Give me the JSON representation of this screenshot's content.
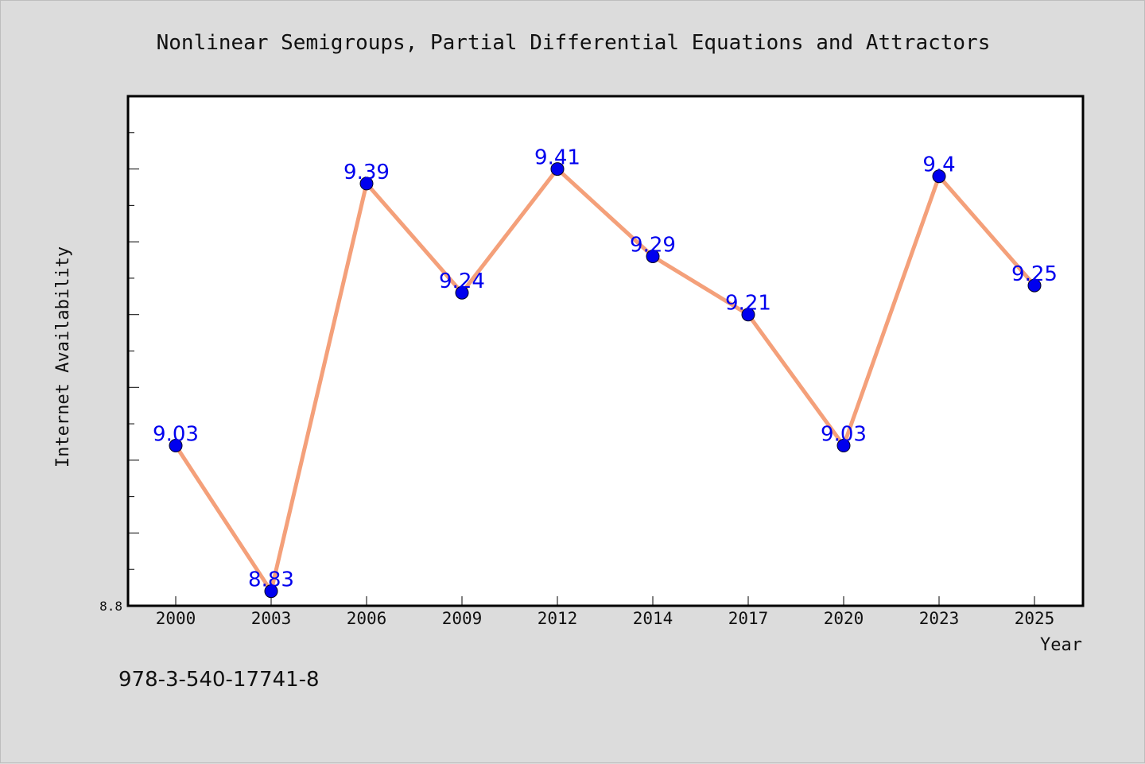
{
  "chart_data": {
    "type": "line",
    "title": "Nonlinear Semigroups, Partial Differential Equations and Attractors",
    "xlabel": "Year",
    "ylabel": "Internet Availability",
    "categories": [
      "2000",
      "2003",
      "2006",
      "2009",
      "2012",
      "2014",
      "2017",
      "2020",
      "2023",
      "2025"
    ],
    "series": [
      {
        "values": [
          9.03,
          8.83,
          9.39,
          9.24,
          9.41,
          9.29,
          9.21,
          9.03,
          9.4,
          9.25
        ],
        "labels": [
          "9.03",
          "8.83",
          "9.39",
          "9.24",
          "9.41",
          "9.29",
          "9.21",
          "9.03",
          "9.4",
          "9.25"
        ]
      }
    ],
    "ylim": [
      8.81,
      9.51
    ],
    "ytick_label": "8.8",
    "grid": false,
    "colors": {
      "line": "#f4a07a",
      "marker": "#0000ee",
      "data_label": "#0000ee",
      "plot_bg": "#ffffff",
      "page_bg": "#dcdcdc"
    }
  },
  "footer": {
    "isbn": "978-3-540-17741-8"
  }
}
